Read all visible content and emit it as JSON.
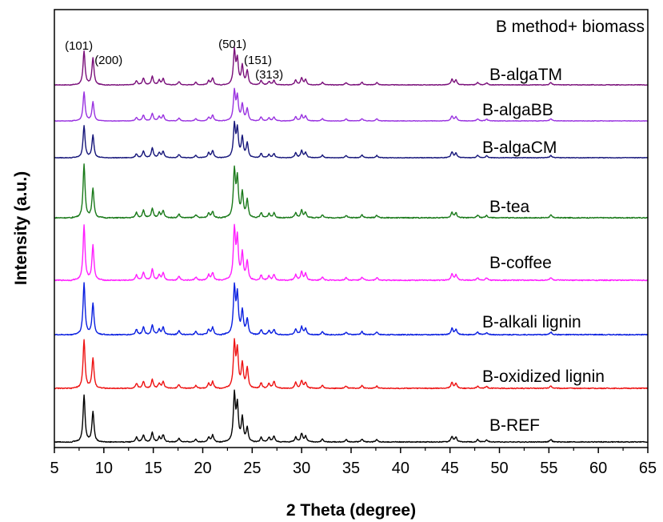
{
  "chart_data": {
    "type": "line",
    "title": "B method+ biomass",
    "xlabel": "2 Theta (degree)",
    "ylabel": "Intensity (a.u.)",
    "xlim": [
      5,
      65
    ],
    "xticks": [
      5,
      10,
      15,
      20,
      25,
      30,
      35,
      40,
      45,
      50,
      55,
      60,
      65
    ],
    "grid": false,
    "legend": "none",
    "peak_positions": [
      8.0,
      8.9,
      13.3,
      14.0,
      14.9,
      15.6,
      16.0,
      17.6,
      19.3,
      20.6,
      21.0,
      23.2,
      23.5,
      24.0,
      24.5,
      25.9,
      26.7,
      27.2,
      29.4,
      30.0,
      30.4,
      32.1,
      34.5,
      36.1,
      37.6,
      45.2,
      45.6,
      47.8,
      48.7,
      55.2
    ],
    "annotations": [
      {
        "text": "(101)",
        "x": 8.0
      },
      {
        "text": "(200)",
        "x": 8.9
      },
      {
        "text": "(501)",
        "x": 23.2
      },
      {
        "text": "(151)",
        "x": 24.0
      },
      {
        "text": "(313)",
        "x": 24.5
      }
    ],
    "series": [
      {
        "name": "B-algaTM",
        "color": "#7a0f7a",
        "intensities": [
          1.0,
          0.8,
          0.12,
          0.2,
          0.25,
          0.14,
          0.18,
          0.1,
          0.08,
          0.12,
          0.2,
          1.0,
          0.72,
          0.55,
          0.42,
          0.14,
          0.1,
          0.13,
          0.14,
          0.2,
          0.16,
          0.08,
          0.07,
          0.08,
          0.07,
          0.16,
          0.14,
          0.07,
          0.06,
          0.07
        ]
      },
      {
        "name": "B-algaBB",
        "color": "#9932e0",
        "intensities": [
          1.0,
          0.65,
          0.12,
          0.2,
          0.25,
          0.15,
          0.2,
          0.1,
          0.08,
          0.12,
          0.2,
          1.0,
          0.8,
          0.55,
          0.42,
          0.14,
          0.1,
          0.13,
          0.14,
          0.2,
          0.16,
          0.08,
          0.07,
          0.08,
          0.07,
          0.16,
          0.14,
          0.07,
          0.06,
          0.07
        ]
      },
      {
        "name": "B-algaCM",
        "color": "#15157a",
        "intensities": [
          1.0,
          0.7,
          0.12,
          0.2,
          0.3,
          0.16,
          0.2,
          0.1,
          0.08,
          0.15,
          0.22,
          1.0,
          0.85,
          0.62,
          0.45,
          0.14,
          0.1,
          0.13,
          0.15,
          0.22,
          0.16,
          0.08,
          0.07,
          0.08,
          0.07,
          0.18,
          0.14,
          0.07,
          0.06,
          0.07
        ]
      },
      {
        "name": "B-tea",
        "color": "#1a7a1a",
        "intensities": [
          1.0,
          0.55,
          0.1,
          0.14,
          0.17,
          0.1,
          0.13,
          0.07,
          0.06,
          0.09,
          0.12,
          0.88,
          0.7,
          0.45,
          0.33,
          0.1,
          0.08,
          0.09,
          0.09,
          0.14,
          0.1,
          0.06,
          0.05,
          0.06,
          0.05,
          0.1,
          0.09,
          0.05,
          0.04,
          0.05
        ]
      },
      {
        "name": "B-coffee",
        "color": "#ff1eff",
        "intensities": [
          1.0,
          0.63,
          0.1,
          0.14,
          0.2,
          0.1,
          0.14,
          0.08,
          0.06,
          0.1,
          0.14,
          0.92,
          0.72,
          0.48,
          0.35,
          0.1,
          0.08,
          0.1,
          0.1,
          0.15,
          0.12,
          0.06,
          0.05,
          0.06,
          0.05,
          0.12,
          0.1,
          0.05,
          0.04,
          0.05
        ]
      },
      {
        "name": "B-alkali lignin",
        "color": "#0a1fe0",
        "intensities": [
          1.0,
          0.6,
          0.1,
          0.15,
          0.18,
          0.1,
          0.14,
          0.08,
          0.06,
          0.1,
          0.14,
          0.9,
          0.75,
          0.45,
          0.3,
          0.1,
          0.08,
          0.1,
          0.1,
          0.15,
          0.12,
          0.06,
          0.05,
          0.06,
          0.05,
          0.12,
          0.1,
          0.05,
          0.04,
          0.05
        ]
      },
      {
        "name": "B-oxidized lignin",
        "color": "#ee1212",
        "intensities": [
          1.0,
          0.62,
          0.1,
          0.14,
          0.18,
          0.1,
          0.14,
          0.08,
          0.06,
          0.1,
          0.14,
          0.92,
          0.75,
          0.5,
          0.42,
          0.12,
          0.1,
          0.15,
          0.12,
          0.16,
          0.12,
          0.06,
          0.05,
          0.06,
          0.05,
          0.12,
          0.1,
          0.05,
          0.04,
          0.05
        ]
      },
      {
        "name": "B-REF",
        "color": "#000000",
        "intensities": [
          1.0,
          0.65,
          0.1,
          0.15,
          0.2,
          0.1,
          0.15,
          0.08,
          0.06,
          0.1,
          0.15,
          1.0,
          0.75,
          0.5,
          0.3,
          0.1,
          0.1,
          0.12,
          0.1,
          0.18,
          0.12,
          0.06,
          0.05,
          0.06,
          0.05,
          0.12,
          0.1,
          0.05,
          0.04,
          0.05
        ]
      }
    ]
  }
}
